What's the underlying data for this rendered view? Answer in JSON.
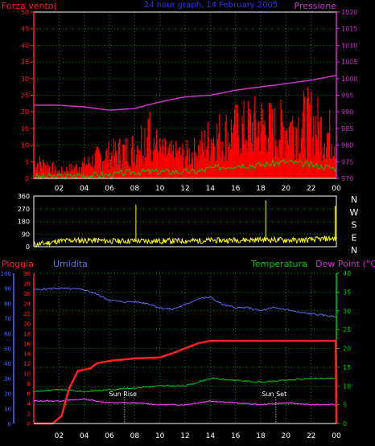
{
  "colors": {
    "background": "#000000",
    "frame": "#ffffff",
    "grid": "#2e7d2e",
    "wind_speed": "#ff0000",
    "wind_gust": "#ffffff",
    "wind_avg": "#00cc00",
    "pressure": "#cc33cc",
    "wind_direction": "#ffff00",
    "rain": "#ff2020",
    "humidity": "#6666ff",
    "temperature": "#00cc00",
    "dew_point": "#ff33ff",
    "left_axis_red": "#ff2020",
    "left_axis_blue": "#4f6cff",
    "right_axis_green": "#00cc00",
    "right_axis_magenta": "#cc33cc",
    "sun_marker": "#ffffff"
  },
  "chart_data": [
    {
      "type": "line",
      "title": "24 hour graph, 14 February 2005",
      "left_axis_label": "Forza vento(",
      "right_axis_label": "Pressione",
      "x_ticks": [
        "02",
        "04",
        "06",
        "08",
        "10",
        "12",
        "14",
        "16",
        "18",
        "20",
        "22",
        "00"
      ],
      "left_ticks": [
        "0",
        "5",
        "10",
        "15",
        "20",
        "25",
        "30",
        "35",
        "40",
        "45",
        "50"
      ],
      "right_ticks": [
        "970",
        "975",
        "980",
        "985",
        "990",
        "995",
        "1000",
        "1005",
        "1010",
        "1015",
        "1020"
      ],
      "left_range": [
        0,
        50
      ],
      "right_range": [
        970,
        1020
      ],
      "x_range": [
        0,
        24
      ],
      "series": [
        {
          "key": "pressure",
          "x": [
            0,
            2,
            4,
            6,
            8,
            10,
            12,
            14,
            16,
            18,
            20,
            22,
            24
          ],
          "values": [
            992,
            992,
            991.5,
            990.5,
            991,
            993,
            994.5,
            995,
            996.5,
            997.5,
            998.5,
            999.5,
            1001
          ]
        },
        {
          "key": "wind_speed",
          "x": [
            0,
            1,
            2,
            3,
            4,
            5,
            6,
            7,
            8,
            9,
            10,
            11,
            12,
            13,
            14,
            15,
            16,
            17,
            18,
            19,
            20,
            21,
            22,
            23,
            24
          ],
          "values": [
            5,
            4,
            2,
            3,
            4,
            6,
            7,
            8,
            9,
            14,
            8,
            7,
            7,
            8,
            12,
            13,
            14,
            15,
            16,
            14,
            15,
            16,
            17,
            14,
            12
          ]
        },
        {
          "key": "wind_avg",
          "x": [
            0,
            2,
            4,
            6,
            8,
            10,
            12,
            13,
            14,
            16,
            18,
            20,
            22,
            24
          ],
          "values": [
            0.5,
            0.5,
            1,
            1,
            2,
            2,
            2,
            2,
            3,
            4,
            4,
            5,
            4,
            3
          ]
        }
      ]
    },
    {
      "type": "scatter",
      "name": "wind_direction",
      "left_ticks": [
        "0",
        "90",
        "180",
        "270",
        "360"
      ],
      "right_ticks": [
        "N",
        "E",
        "S",
        "W",
        "N"
      ],
      "y_range": [
        0,
        360
      ],
      "x_range": [
        0,
        24
      ],
      "series": [
        {
          "key": "wind_direction",
          "x": [
            0,
            1,
            2,
            3,
            4,
            5,
            6,
            7,
            8,
            9,
            10,
            11,
            12,
            13,
            14,
            15,
            16,
            17,
            18,
            19,
            20,
            21,
            22,
            23,
            24
          ],
          "values": [
            15,
            25,
            40,
            45,
            45,
            45,
            40,
            40,
            42,
            40,
            40,
            42,
            42,
            42,
            45,
            45,
            48,
            48,
            50,
            50,
            48,
            45,
            50,
            55,
            60
          ]
        }
      ]
    },
    {
      "type": "line",
      "left_label_1": "Pioggia",
      "left_label_2": "Umidita",
      "right_label_1": "Temperatura",
      "right_label_2": "Dew Point (°C)",
      "x_ticks": [
        "02",
        "04",
        "06",
        "08",
        "10",
        "12",
        "14",
        "16",
        "18",
        "20",
        "22",
        "00"
      ],
      "rain_ticks": [
        "0",
        "2",
        "4",
        "6",
        "8",
        "10",
        "12",
        "14",
        "16",
        "18",
        "20",
        "22",
        "24",
        "26",
        "28",
        "30"
      ],
      "humidity_ticks": [
        "0",
        "10",
        "20",
        "30",
        "40",
        "50",
        "60",
        "70",
        "80",
        "90",
        "100"
      ],
      "temp_ticks": [
        "0",
        "5",
        "10",
        "15",
        "20",
        "25",
        "30",
        "35",
        "40"
      ],
      "rain_range": [
        0,
        30
      ],
      "humidity_range": [
        0,
        100
      ],
      "temp_range": [
        0,
        40
      ],
      "x_range": [
        0,
        24
      ],
      "annotations": [
        "Sun Rise",
        "Sun Set"
      ],
      "sun_rise_x": 7.2,
      "sun_set_x": 19.2,
      "series": [
        {
          "key": "rain",
          "x": [
            0,
            1.5,
            2.2,
            2.8,
            3.5,
            4.5,
            5,
            6,
            8,
            10,
            11,
            12,
            13,
            14,
            16,
            18,
            20,
            22,
            23.95,
            24
          ],
          "values": [
            0,
            0,
            1.5,
            7,
            10.5,
            11,
            12,
            12.5,
            13,
            13.2,
            14,
            15,
            16,
            16.5,
            16.5,
            16.5,
            16.5,
            16.5,
            16.5,
            0
          ]
        },
        {
          "key": "humidity",
          "x": [
            0,
            2,
            4,
            5,
            6,
            7,
            8,
            9,
            10,
            11,
            12,
            13,
            14,
            15,
            16,
            17,
            18,
            19,
            20,
            21,
            22,
            23,
            24
          ],
          "values": [
            89,
            90,
            89,
            86,
            82,
            81,
            81,
            80,
            77,
            76,
            79,
            83,
            84,
            79,
            77,
            77,
            75,
            77,
            76,
            74,
            73,
            72,
            71
          ]
        },
        {
          "key": "temperature",
          "x": [
            0,
            2,
            4,
            6,
            8,
            10,
            12,
            13,
            14,
            16,
            18,
            20,
            22,
            24
          ],
          "values": [
            8.5,
            9,
            8.5,
            9,
            9.5,
            10,
            10,
            11,
            12,
            11.5,
            11,
            11.5,
            12,
            12
          ]
        },
        {
          "key": "dew_point",
          "x": [
            0,
            2,
            4,
            6,
            8,
            10,
            12,
            14,
            16,
            18,
            20,
            22,
            24
          ],
          "values": [
            6,
            6,
            6.5,
            5.5,
            5.5,
            5,
            5,
            6,
            5.5,
            5,
            5.5,
            5,
            5
          ]
        }
      ]
    }
  ]
}
